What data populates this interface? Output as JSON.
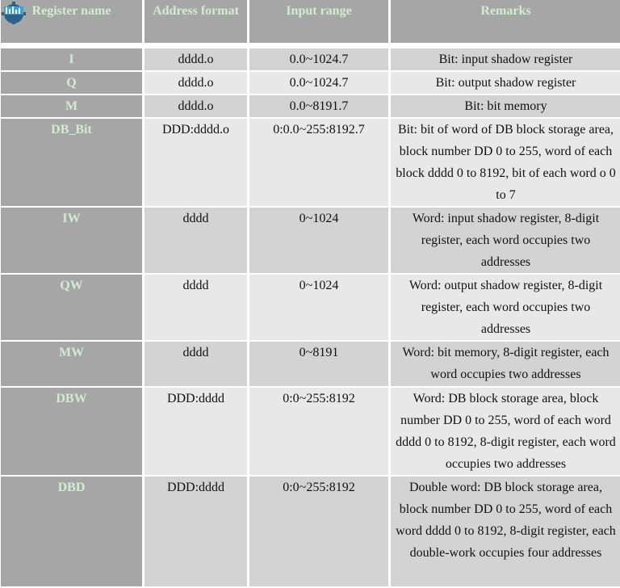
{
  "table": {
    "headers": [
      "Register name",
      "Address format",
      "Input range",
      "Remarks"
    ],
    "rows": [
      {
        "name": "I",
        "format": "dddd.o",
        "range": "0.0~1024.7",
        "remarks": "Bit: input shadow register"
      },
      {
        "name": "Q",
        "format": "dddd.o",
        "range": "0.0~1024.7",
        "remarks": "Bit: output shadow register"
      },
      {
        "name": "M",
        "format": "dddd.o",
        "range": "0.0~8191.7",
        "remarks": "Bit: bit memory"
      },
      {
        "name": "DB_Bit",
        "format": "DDD:dddd.o",
        "range": "0:0.0~255:8192.7",
        "remarks": "Bit: bit of word of DB block storage area, block number DD 0 to 255, word of each block dddd 0 to 8192, bit of each word o 0 to 7"
      },
      {
        "name": "IW",
        "format": "dddd",
        "range": "0~1024",
        "remarks": "Word: input shadow register, 8-digit register, each word occupies two addresses"
      },
      {
        "name": "QW",
        "format": "dddd",
        "range": "0~1024",
        "remarks": "Word: output shadow register, 8-digit register, each word occupies two addresses"
      },
      {
        "name": "MW",
        "format": "dddd",
        "range": "0~8191",
        "remarks": "Word: bit memory, 8-digit register, each word occupies two addresses"
      },
      {
        "name": "DBW",
        "format": "DDD:dddd",
        "range": "0:0~255:8192",
        "remarks": "Word: DB block storage area, block number DD 0 to 255, word of each word dddd 0 to 8192, 8-digit register, each word occupies two addresses"
      },
      {
        "name": "DBD",
        "format": "DDD:dddd",
        "range": "0:0~255:8192",
        "remarks": "Double word: DB block storage area, block number DD 0 to 255, word of each word dddd 0 to 8192, 8-digit register, each double-work occupies four addresses"
      }
    ]
  },
  "colors": {
    "header_bg": "#a6a6a6",
    "header_text": "#d2ecd2",
    "row_dark": "#d3d3d3",
    "row_light": "#e8e8e8"
  }
}
